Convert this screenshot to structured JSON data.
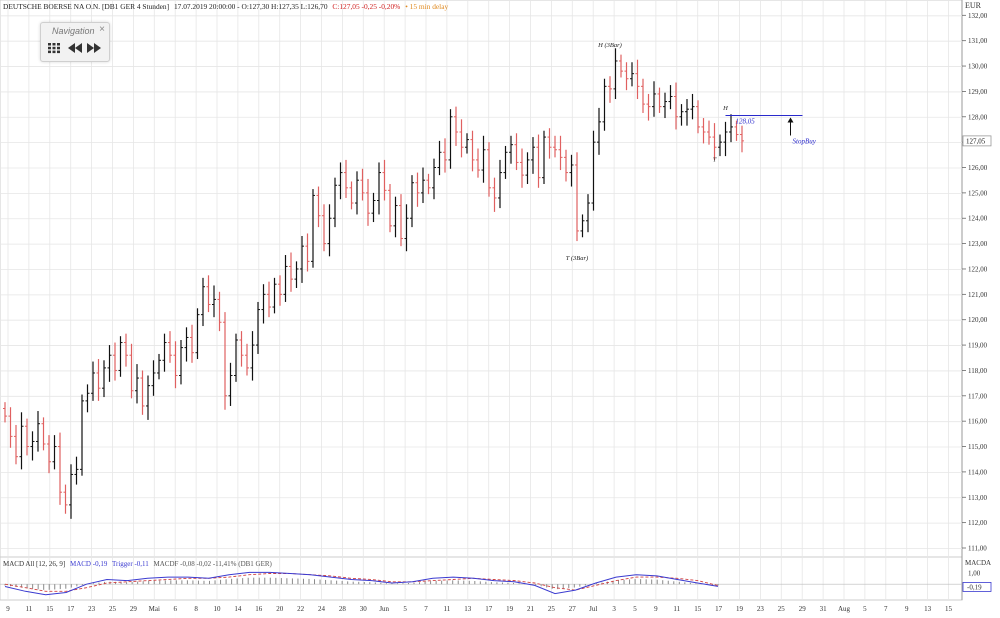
{
  "header": {
    "instrument": "DEUTSCHE BOERSE NA O.N. [DB1 GER 4 Stunden]",
    "ohlc_info": "17.07.2019 20:00:00 - O:127,30 H:127,35 L:126,70",
    "change": "C:127,05 -0,25 -0,20%",
    "delay": "• 15 min delay"
  },
  "navigation": {
    "title": "Navigation",
    "close": "×"
  },
  "colors": {
    "up": "#111111",
    "down": "#e06060",
    "grid": "#e6e6e6",
    "macd": "#3a3ad0",
    "trigger": "#d04040",
    "annotation": "#2a2acc"
  },
  "chart_data": [
    {
      "type": "ohlc",
      "title": "DEUTSCHE BOERSE NA O.N. [DB1 GER 4 Stunden]",
      "ylabel": "EUR",
      "ylim": [
        111,
        132
      ],
      "yticks": [
        "111,00",
        "112,00",
        "113,00",
        "114,00",
        "115,00",
        "116,00",
        "117,00",
        "118,00",
        "119,00",
        "120,00",
        "121,00",
        "122,00",
        "123,00",
        "124,00",
        "125,00",
        "126,00",
        "127,00",
        "128,00",
        "129,00",
        "130,00",
        "131,00",
        "132,00"
      ],
      "last_price": "127,05",
      "x_tick_labels": [
        "9",
        "11",
        "15",
        "17",
        "23",
        "25",
        "29",
        "Mai",
        "6",
        "8",
        "10",
        "14",
        "16",
        "20",
        "22",
        "24",
        "28",
        "30",
        "Jun",
        "5",
        "7",
        "11",
        "13",
        "17",
        "19",
        "21",
        "25",
        "27",
        "Jul",
        "3",
        "5",
        "9",
        "11",
        "15",
        "17",
        "19",
        "23",
        "25",
        "29",
        "31",
        "Aug",
        "5",
        "7",
        "9",
        "13",
        "15"
      ],
      "series": [
        {
          "values": [
            116.2,
            115.4,
            114.6,
            115.8,
            115.0,
            115.2,
            115.9,
            115.1,
            114.4,
            115.0,
            113.2,
            112.7,
            113.9,
            114.1,
            116.8,
            117.1,
            117.9,
            117.3,
            118.1,
            118.6,
            118.0,
            119.1,
            118.6,
            117.2,
            117.7,
            116.6,
            117.4,
            117.9,
            118.4,
            119.1,
            118.6,
            117.8,
            118.9,
            119.3,
            118.7,
            120.2,
            121.3,
            120.6,
            120.8,
            119.9,
            117.0,
            117.8,
            119.2,
            118.6,
            118.1,
            119.0,
            120.4,
            121.0,
            120.5,
            121.4,
            121.0,
            122.1,
            121.6,
            122.0,
            122.9,
            122.3,
            124.9,
            124.1,
            123.0,
            124.0,
            125.3,
            125.8,
            125.2,
            124.6,
            125.5,
            125.0,
            124.2,
            124.7,
            125.8,
            125.1,
            123.7,
            124.5,
            123.2,
            124.0,
            125.4,
            125.0,
            125.5,
            125.2,
            126.0,
            126.6,
            126.3,
            128.0,
            127.4,
            126.8,
            127.1,
            126.3,
            125.9,
            126.7,
            125.2,
            124.8,
            125.8,
            126.6,
            126.9,
            126.2,
            125.7,
            126.3,
            126.8,
            125.6,
            127.2,
            126.8,
            126.7,
            126.4,
            125.8,
            126.1,
            123.5,
            123.9,
            124.6,
            127.0,
            127.8,
            129.2,
            129.1,
            130.2,
            129.8,
            129.5,
            129.7,
            129.2,
            128.5,
            128.4,
            128.9,
            128.4,
            128.6,
            128.8,
            128.0,
            128.2,
            128.3,
            128.4,
            127.6,
            127.4,
            127.2,
            126.8,
            127.0,
            127.4,
            127.6,
            127.3,
            127.05
          ]
        },
        {
          "name": "MACD All [12, 26, 9]",
          "values": [
            -0.2,
            -0.6,
            -0.9,
            -0.7,
            0.0,
            0.4,
            0.3,
            0.5,
            0.6,
            0.6,
            0.5,
            0.8,
            1.0,
            1.0,
            0.9,
            0.8,
            0.6,
            0.4,
            0.3,
            0.1,
            0.2,
            0.5,
            0.6,
            0.5,
            0.3,
            0.2,
            -0.1,
            -0.8,
            -0.5,
            0.1,
            0.6,
            0.8,
            0.7,
            0.4,
            0.1,
            -0.19
          ]
        },
        {
          "name": "Trigger",
          "values": [
            0.0,
            -0.3,
            -0.6,
            -0.6,
            -0.3,
            0.1,
            0.2,
            0.3,
            0.4,
            0.5,
            0.5,
            0.6,
            0.8,
            0.9,
            0.9,
            0.8,
            0.7,
            0.5,
            0.4,
            0.2,
            0.2,
            0.3,
            0.4,
            0.5,
            0.4,
            0.3,
            0.1,
            -0.3,
            -0.5,
            -0.1,
            0.3,
            0.6,
            0.6,
            0.5,
            0.3,
            -0.11
          ]
        }
      ],
      "annotations": [
        {
          "label": "H (3Bar)",
          "x": 110,
          "y": 130.6
        },
        {
          "label": "T (3Bar)",
          "x": 104,
          "y": 122.7
        },
        {
          "label": "H",
          "x": 131,
          "y": 128.1
        },
        {
          "label": "T",
          "x": 129,
          "y": 126.6
        }
      ],
      "stop_line": {
        "label": "128,05",
        "value": 128.05,
        "from": 131,
        "to": 145
      },
      "stopbuy_label": "StopBuy"
    },
    {
      "type": "line",
      "title": "MACD All [12, 26, 9] MACD -0,19 Trigger -0,11 MACDF -0,08 -0,02 -11,41% (DB1 GER)",
      "ylabel": "MACDA",
      "legend": [
        "MACD All [12, 26, 9]",
        "MACD -0,19",
        "Trigger -0,11",
        "MACDF -0,08 -0,02 -11,41% (DB1 GER)"
      ],
      "yticks": [
        "1,00",
        "-0,19"
      ],
      "macd_last": "-0,19"
    }
  ]
}
